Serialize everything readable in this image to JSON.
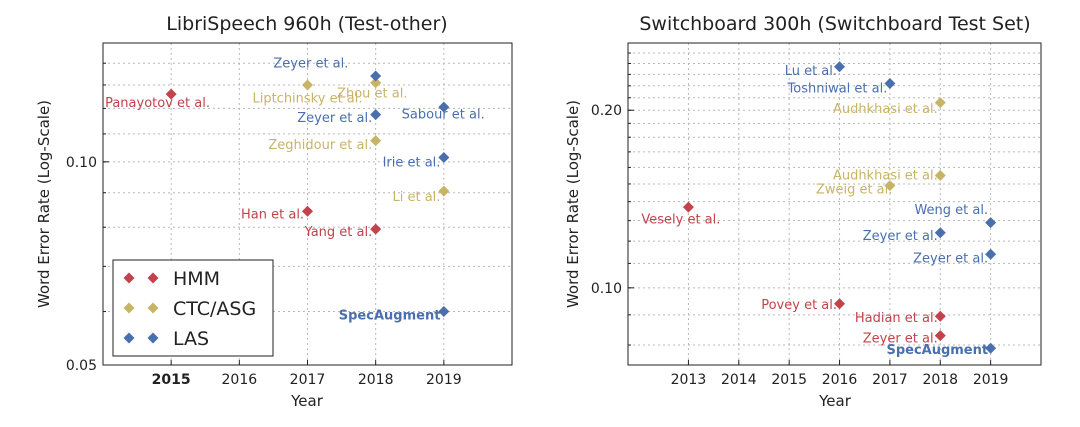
{
  "colors": {
    "HMM": "#c2434b",
    "CTC/ASG": "#c8b466",
    "LAS": "#4a6fad",
    "grid": "#b8b8b8",
    "axis": "#222222",
    "text": "#222222"
  },
  "chart_data": [
    {
      "type": "scatter",
      "title": "LibriSpeech 960h (Test-other)",
      "xlabel": "Year",
      "ylabel": "Word Error Rate (Log-Scale)",
      "yscale": "log",
      "xlim": [
        2014.0,
        2020.0
      ],
      "ylim": [
        0.05,
        0.15
      ],
      "xticks": [
        2015,
        2016,
        2017,
        2018,
        2019
      ],
      "xtick_labels": [
        "2015",
        "2016",
        "2017",
        "2018",
        "2019"
      ],
      "bold_xtick": "2015",
      "yticks": [
        0.05,
        0.1
      ],
      "ytick_labels": [
        "0.05",
        "0.10"
      ],
      "grid": true,
      "legend": {
        "placement": "bottom-left",
        "entries": [
          {
            "name": "HMM",
            "series": "HMM"
          },
          {
            "name": "CTC/ASG",
            "series": "CTC/ASG"
          },
          {
            "name": "LAS",
            "series": "LAS"
          }
        ]
      },
      "points": [
        {
          "label": "Panayotov et al.",
          "series": "HMM",
          "x": 2015,
          "y": 0.126,
          "anchor": "middle",
          "lx": 2014.8,
          "ly": 0.1205
        },
        {
          "label": "Han et al.",
          "series": "HMM",
          "x": 2017,
          "y": 0.0845,
          "anchor": "end",
          "lx": 2016.95,
          "ly": 0.0824
        },
        {
          "label": "Yang et al.",
          "series": "HMM",
          "x": 2018,
          "y": 0.0795,
          "anchor": "end",
          "lx": 2017.95,
          "ly": 0.0776
        },
        {
          "label": "Liptchinsky et al.",
          "series": "CTC/ASG",
          "x": 2017,
          "y": 0.13,
          "anchor": "middle",
          "lx": 2017.0,
          "ly": 0.1225
        },
        {
          "label": "Zhou et al.",
          "series": "CTC/ASG",
          "x": 2018,
          "y": 0.131,
          "anchor": "middle",
          "lx": 2017.95,
          "ly": 0.1245
        },
        {
          "label": "Zeghidour et al.",
          "series": "CTC/ASG",
          "x": 2018,
          "y": 0.1075,
          "anchor": "end",
          "lx": 2017.95,
          "ly": 0.1045
        },
        {
          "label": "Li et al.",
          "series": "CTC/ASG",
          "x": 2019,
          "y": 0.0905,
          "anchor": "end",
          "lx": 2018.95,
          "ly": 0.0875
        },
        {
          "label": "Zeyer et al.",
          "series": "LAS",
          "x": 2018,
          "y": 0.134,
          "anchor": "end",
          "lx": 2017.6,
          "ly": 0.138
        },
        {
          "label": "Zeyer et al.",
          "series": "LAS",
          "x": 2018,
          "y": 0.1175,
          "anchor": "end",
          "lx": 2017.95,
          "ly": 0.1145
        },
        {
          "label": "Sabour et al.",
          "series": "LAS",
          "x": 2019,
          "y": 0.1205,
          "anchor": "end",
          "lx": 2019.6,
          "ly": 0.116
        },
        {
          "label": "Irie et al.",
          "series": "LAS",
          "x": 2019,
          "y": 0.1015,
          "anchor": "end",
          "lx": 2018.95,
          "ly": 0.0985
        },
        {
          "label": "SpecAugment",
          "series": "LAS",
          "x": 2019,
          "y": 0.06,
          "anchor": "end",
          "lx": 2018.95,
          "ly": 0.0584,
          "bold": true
        }
      ]
    },
    {
      "type": "scatter",
      "title": "Switchboard 300h (Switchboard Test Set)",
      "xlabel": "Year",
      "ylabel": "Word Error Rate (Log-Scale)",
      "yscale": "log",
      "xlim": [
        2011.8,
        2020.0
      ],
      "ylim": [
        0.074,
        0.26
      ],
      "xticks": [
        2013,
        2014,
        2015,
        2016,
        2017,
        2018,
        2019
      ],
      "xtick_labels": [
        "2013",
        "2014",
        "2015",
        "2016",
        "2017",
        "2018",
        "2019"
      ],
      "yticks": [
        0.1,
        0.2
      ],
      "ytick_labels": [
        "0.10",
        "0.20"
      ],
      "grid": true,
      "points": [
        {
          "label": "Vesely et al.",
          "series": "HMM",
          "x": 2013,
          "y": 0.137,
          "anchor": "middle",
          "lx": 2012.85,
          "ly": 0.1285
        },
        {
          "label": "Povey et al.",
          "series": "HMM",
          "x": 2016,
          "y": 0.094,
          "anchor": "end",
          "lx": 2015.95,
          "ly": 0.092
        },
        {
          "label": "Hadian et al.",
          "series": "HMM",
          "x": 2018,
          "y": 0.0895,
          "anchor": "end",
          "lx": 2017.95,
          "ly": 0.0875
        },
        {
          "label": "Zeyer et al.",
          "series": "HMM",
          "x": 2018,
          "y": 0.083,
          "anchor": "end",
          "lx": 2017.95,
          "ly": 0.0808
        },
        {
          "label": "Audhkhasi et al.",
          "series": "CTC/ASG",
          "x": 2018,
          "y": 0.206,
          "anchor": "end",
          "lx": 2017.95,
          "ly": 0.198
        },
        {
          "label": "Audhkhasi et al.",
          "series": "CTC/ASG",
          "x": 2018,
          "y": 0.155,
          "anchor": "end",
          "lx": 2017.95,
          "ly": 0.1525
        },
        {
          "label": "Zweig et al.",
          "series": "CTC/ASG",
          "x": 2017,
          "y": 0.149,
          "anchor": "end",
          "lx": 2017.05,
          "ly": 0.1445
        },
        {
          "label": "Lu et al.",
          "series": "LAS",
          "x": 2016,
          "y": 0.237,
          "anchor": "end",
          "lx": 2015.95,
          "ly": 0.2295
        },
        {
          "label": "Toshniwal et al.",
          "series": "LAS",
          "x": 2017,
          "y": 0.222,
          "anchor": "end",
          "lx": 2016.95,
          "ly": 0.2145
        },
        {
          "label": "Weng et al.",
          "series": "LAS",
          "x": 2019,
          "y": 0.129,
          "anchor": "end",
          "lx": 2018.95,
          "ly": 0.1335
        },
        {
          "label": "Zeyer et al.",
          "series": "LAS",
          "x": 2018,
          "y": 0.124,
          "anchor": "end",
          "lx": 2017.95,
          "ly": 0.1205
        },
        {
          "label": "Zeyer et al.",
          "series": "LAS",
          "x": 2019,
          "y": 0.114,
          "anchor": "end",
          "lx": 2018.95,
          "ly": 0.1105
        },
        {
          "label": "SpecAugment",
          "series": "LAS",
          "x": 2019,
          "y": 0.079,
          "anchor": "end",
          "lx": 2018.95,
          "ly": 0.0772,
          "bold": true
        }
      ]
    }
  ]
}
